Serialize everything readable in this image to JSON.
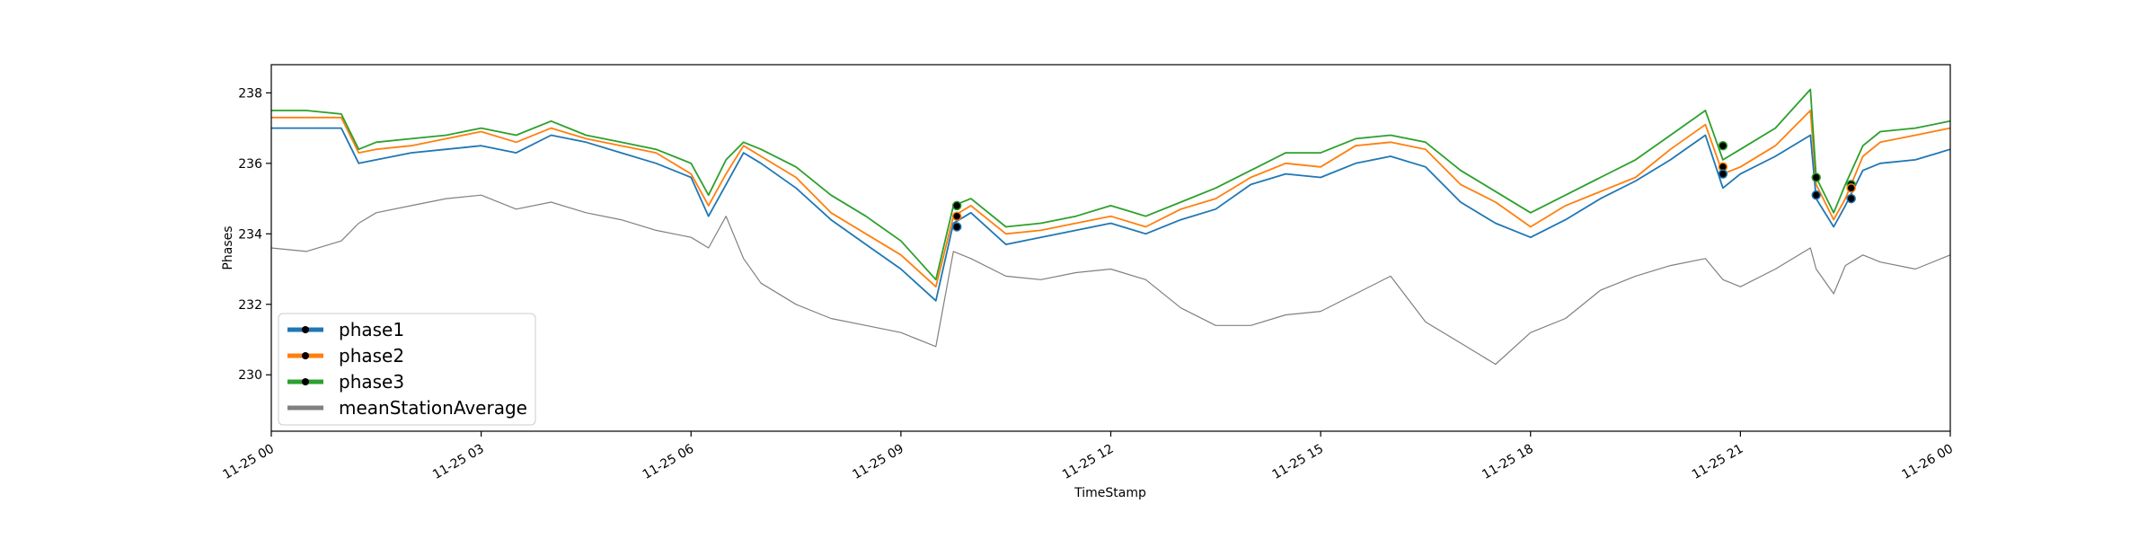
{
  "chart_data": {
    "type": "line",
    "title": "",
    "xlabel": "TimeStamp",
    "ylabel": "Phases",
    "xlim": [
      "2023-11-25 00:00",
      "2023-11-26 00:00"
    ],
    "ylim": [
      228.4,
      238.8
    ],
    "grid": false,
    "legend_position": "lower-left",
    "x_ticks": [
      "2023-11-25 00:00",
      "2023-11-25 03:00",
      "2023-11-25 06:00",
      "2023-11-25 09:00",
      "2023-11-25 12:00",
      "2023-11-25 15:00",
      "2023-11-25 18:00",
      "2023-11-25 21:00",
      "2023-11-26 00:00"
    ],
    "x_tick_labels": [
      "11-25 00",
      "11-25 03",
      "11-25 06",
      "11-25 09",
      "11-25 12",
      "11-25 15",
      "11-25 18",
      "11-25 21",
      "11-26 00"
    ],
    "y_ticks": [
      230,
      232,
      234,
      236,
      238
    ],
    "y_tick_labels": [
      "230",
      "232",
      "234",
      "236",
      "238"
    ],
    "x": [
      "2023-11-25 00:00",
      "2023-11-25 00:30",
      "2023-11-25 01:00",
      "2023-11-25 01:15",
      "2023-11-25 01:30",
      "2023-11-25 02:00",
      "2023-11-25 02:30",
      "2023-11-25 03:00",
      "2023-11-25 03:30",
      "2023-11-25 04:00",
      "2023-11-25 04:30",
      "2023-11-25 05:00",
      "2023-11-25 05:30",
      "2023-11-25 06:00",
      "2023-11-25 06:15",
      "2023-11-25 06:30",
      "2023-11-25 06:45",
      "2023-11-25 07:00",
      "2023-11-25 07:30",
      "2023-11-25 08:00",
      "2023-11-25 08:30",
      "2023-11-25 09:00",
      "2023-11-25 09:30",
      "2023-11-25 09:45",
      "2023-11-25 10:00",
      "2023-11-25 10:30",
      "2023-11-25 11:00",
      "2023-11-25 11:30",
      "2023-11-25 12:00",
      "2023-11-25 12:30",
      "2023-11-25 13:00",
      "2023-11-25 13:30",
      "2023-11-25 14:00",
      "2023-11-25 14:30",
      "2023-11-25 15:00",
      "2023-11-25 15:30",
      "2023-11-25 16:00",
      "2023-11-25 16:30",
      "2023-11-25 17:00",
      "2023-11-25 17:30",
      "2023-11-25 18:00",
      "2023-11-25 18:30",
      "2023-11-25 19:00",
      "2023-11-25 19:30",
      "2023-11-25 20:00",
      "2023-11-25 20:30",
      "2023-11-25 20:45",
      "2023-11-25 21:00",
      "2023-11-25 21:30",
      "2023-11-25 22:00",
      "2023-11-25 22:05",
      "2023-11-25 22:20",
      "2023-11-25 22:30",
      "2023-11-25 22:45",
      "2023-11-25 23:00",
      "2023-11-25 23:30",
      "2023-11-26 00:00"
    ],
    "series": [
      {
        "name": "phase1",
        "color": "#1f77b4",
        "values": [
          237.0,
          237.0,
          237.0,
          236.0,
          236.1,
          236.3,
          236.4,
          236.5,
          236.3,
          236.8,
          236.6,
          236.3,
          236.0,
          235.6,
          234.5,
          235.4,
          236.3,
          236.0,
          235.3,
          234.4,
          233.7,
          233.0,
          232.1,
          234.3,
          234.6,
          233.7,
          233.9,
          234.1,
          234.3,
          234.0,
          234.4,
          234.7,
          235.4,
          235.7,
          235.6,
          236.0,
          236.2,
          235.9,
          234.9,
          234.3,
          233.9,
          234.4,
          235.0,
          235.5,
          236.1,
          236.8,
          235.3,
          235.7,
          236.2,
          236.8,
          235.0,
          234.2,
          234.8,
          235.8,
          236.0,
          236.1,
          236.4
        ]
      },
      {
        "name": "phase2",
        "color": "#ff7f0e",
        "values": [
          237.3,
          237.3,
          237.3,
          236.3,
          236.4,
          236.5,
          236.7,
          236.9,
          236.6,
          237.0,
          236.7,
          236.5,
          236.3,
          235.7,
          234.8,
          235.7,
          236.5,
          236.2,
          235.6,
          234.6,
          234.0,
          233.4,
          232.5,
          234.5,
          234.8,
          234.0,
          234.1,
          234.3,
          234.5,
          234.2,
          234.7,
          235.0,
          235.6,
          236.0,
          235.9,
          236.5,
          236.6,
          236.4,
          235.4,
          234.9,
          234.2,
          234.8,
          235.2,
          235.6,
          236.4,
          237.1,
          235.7,
          235.9,
          236.5,
          237.5,
          235.4,
          234.4,
          235.0,
          236.2,
          236.6,
          236.8,
          237.0
        ]
      },
      {
        "name": "phase3",
        "color": "#2ca02c",
        "values": [
          237.5,
          237.5,
          237.4,
          236.4,
          236.6,
          236.7,
          236.8,
          237.0,
          236.8,
          237.2,
          236.8,
          236.6,
          236.4,
          236.0,
          235.1,
          236.1,
          236.6,
          236.4,
          235.9,
          235.1,
          234.5,
          233.8,
          232.7,
          234.8,
          235.0,
          234.2,
          234.3,
          234.5,
          234.8,
          234.5,
          234.9,
          235.3,
          235.8,
          236.3,
          236.3,
          236.7,
          236.8,
          236.6,
          235.8,
          235.2,
          234.6,
          235.1,
          235.6,
          236.1,
          236.8,
          237.5,
          236.1,
          236.4,
          237.0,
          238.1,
          235.6,
          234.6,
          235.4,
          236.5,
          236.9,
          237.0,
          237.2
        ]
      },
      {
        "name": "meanStationAverage",
        "color": "#808080",
        "values": [
          233.6,
          233.5,
          233.8,
          234.3,
          234.6,
          234.8,
          235.0,
          235.1,
          234.7,
          234.9,
          234.6,
          234.4,
          234.1,
          233.9,
          233.6,
          234.5,
          233.3,
          232.6,
          232.0,
          231.6,
          231.4,
          231.2,
          230.8,
          233.5,
          233.3,
          232.8,
          232.7,
          232.9,
          233.0,
          232.7,
          231.9,
          231.4,
          231.4,
          231.7,
          231.8,
          232.3,
          232.8,
          231.5,
          230.9,
          230.3,
          231.2,
          231.6,
          232.4,
          232.8,
          233.1,
          233.3,
          232.7,
          232.5,
          233.0,
          233.6,
          233.0,
          232.3,
          233.1,
          233.4,
          233.2,
          233.0,
          233.4
        ]
      }
    ],
    "markers": [
      {
        "series": "phase3",
        "x": "2023-11-25 09:48",
        "y": 234.8
      },
      {
        "series": "phase2",
        "x": "2023-11-25 09:48",
        "y": 234.5
      },
      {
        "series": "phase1",
        "x": "2023-11-25 09:48",
        "y": 234.2
      },
      {
        "series": "phase3",
        "x": "2023-11-25 20:45",
        "y": 236.5
      },
      {
        "series": "phase2",
        "x": "2023-11-25 20:45",
        "y": 235.9
      },
      {
        "series": "phase1",
        "x": "2023-11-25 20:45",
        "y": 235.7
      },
      {
        "series": "phase3",
        "x": "2023-11-25 22:05",
        "y": 235.6
      },
      {
        "series": "phase1",
        "x": "2023-11-25 22:05",
        "y": 235.1
      },
      {
        "series": "phase3",
        "x": "2023-11-25 22:35",
        "y": 235.4
      },
      {
        "series": "phase2",
        "x": "2023-11-25 22:35",
        "y": 235.3
      },
      {
        "series": "phase1",
        "x": "2023-11-25 22:35",
        "y": 235.0
      }
    ]
  }
}
